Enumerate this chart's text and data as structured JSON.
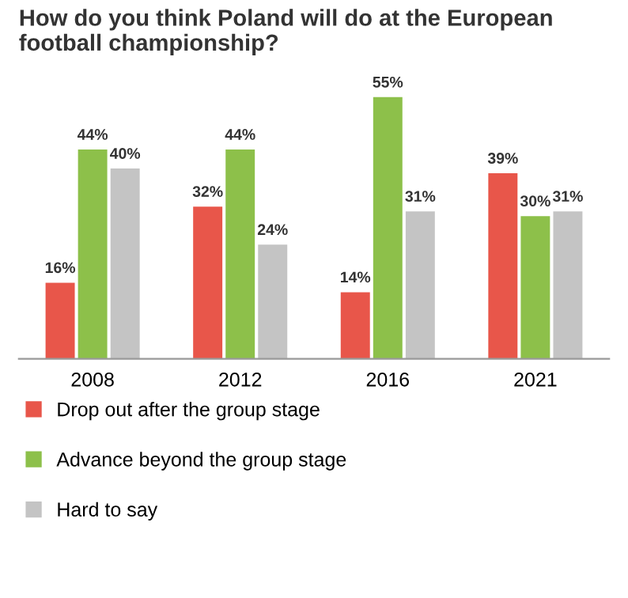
{
  "chart_data": {
    "type": "bar",
    "title": "How do you think Poland will do at the European football championship?",
    "categories": [
      "2008",
      "2012",
      "2016",
      "2021"
    ],
    "series": [
      {
        "name": "Drop out after the group stage",
        "color": "#e8564a",
        "values": [
          16,
          32,
          14,
          39
        ],
        "value_labels": [
          "16%",
          "32%",
          "14%",
          "39%"
        ]
      },
      {
        "name": "Advance beyond the group stage",
        "color": "#8dc04a",
        "values": [
          44,
          44,
          55,
          30
        ],
        "value_labels": [
          "44%",
          "44%",
          "55%",
          "30%"
        ]
      },
      {
        "name": "Hard to say",
        "color": "#c4c4c4",
        "values": [
          40,
          24,
          31,
          31
        ],
        "value_labels": [
          "40%",
          "24%",
          "31%",
          "31%"
        ]
      }
    ],
    "legend": "bottom"
  }
}
